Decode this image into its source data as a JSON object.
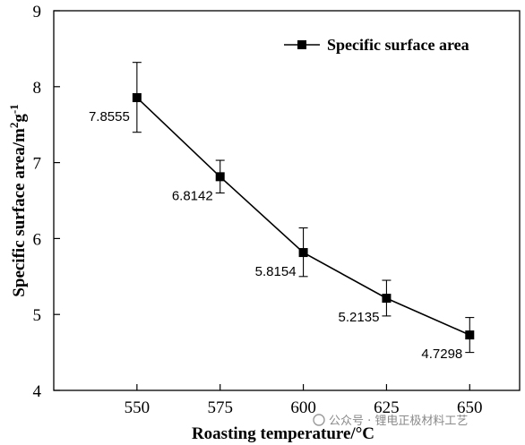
{
  "chart_data": {
    "type": "line",
    "x": [
      550,
      575,
      600,
      625,
      650
    ],
    "series": [
      {
        "name": "Specific surface area",
        "values": [
          7.8555,
          6.8142,
          5.8154,
          5.2135,
          4.7298
        ],
        "error_upper": [
          8.32,
          7.03,
          6.14,
          5.45,
          4.96
        ],
        "error_lower": [
          7.4,
          6.6,
          5.5,
          4.98,
          4.5
        ],
        "value_labels": [
          "7.8555",
          "6.8142",
          "5.8154",
          "5.2135",
          "4.7298"
        ],
        "color": "#000000",
        "marker": "square"
      }
    ],
    "xlabel": "Roasting temperature/°C",
    "ylabel_parts": {
      "main": "Specific surface area/m",
      "sup1": "2",
      "mid": "g",
      "sup2": "-1"
    },
    "xlim": [
      525,
      665
    ],
    "ylim": [
      4,
      9
    ],
    "x_ticks": [
      550,
      575,
      600,
      625,
      650
    ],
    "y_ticks": [
      4,
      5,
      6,
      7,
      8,
      9
    ],
    "legend_position": "top-right",
    "grid": false
  },
  "watermark": {
    "text": "公众号 · 锂电正极材料工艺"
  }
}
